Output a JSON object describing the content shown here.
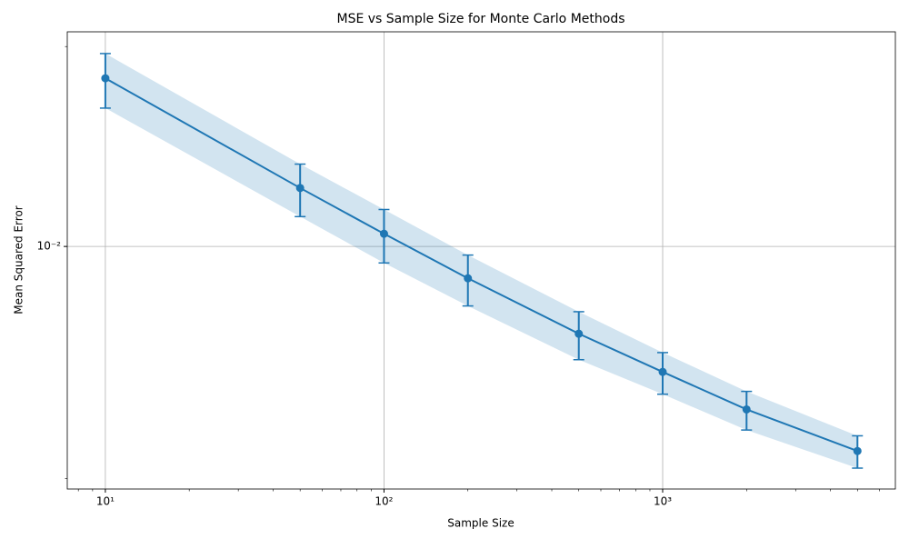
{
  "chart_data": {
    "type": "line",
    "title": "MSE vs Sample Size for Monte Carlo Methods",
    "xlabel": "Sample Size",
    "ylabel": "Mean Squared Error",
    "x": [
      10,
      50,
      100,
      200,
      500,
      1000,
      2000,
      5000
    ],
    "series": [
      {
        "color": "#1f77b4",
        "values": [
          0.0321,
          0.015,
          0.01092,
          0.00802,
          0.00546,
          0.00419,
          0.00323,
          0.00242
        ],
        "errors": [
          0.006,
          0.0027,
          0.002,
          0.0014,
          0.0009,
          0.0006,
          0.00043,
          0.00027
        ]
      }
    ],
    "xlim": [
      7.3,
      6840
    ],
    "ylim": [
      0.00186,
      0.0443
    ],
    "xticks": [
      {
        "value": 10,
        "label": "10¹"
      },
      {
        "value": 100,
        "label": "10²"
      },
      {
        "value": 1000,
        "label": "10³"
      }
    ],
    "yticks": [
      {
        "value": 0.01,
        "label": "10⁻²"
      }
    ],
    "xminor": [
      8,
      9,
      20,
      30,
      40,
      50,
      60,
      70,
      80,
      90,
      200,
      300,
      400,
      500,
      600,
      700,
      800,
      900,
      2000,
      3000,
      4000,
      5000,
      6000
    ],
    "yminor": [
      0.002,
      0.04
    ],
    "log_x": true,
    "log_y": true,
    "grid": true,
    "band_opacity": 0.2
  }
}
